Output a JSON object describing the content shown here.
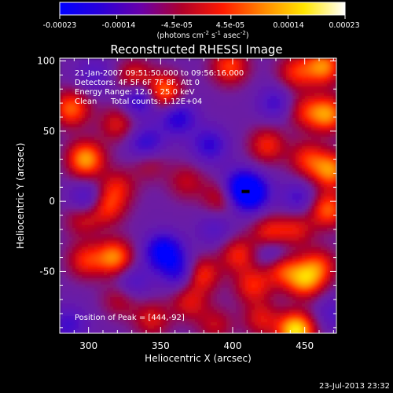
{
  "colors": {
    "background": "#000000",
    "axis": "#ffffff",
    "peak_marker": "#000000"
  },
  "colorbar": {
    "stops": [
      "#0000ff",
      "#2a00d8",
      "#6a00a8",
      "#b0002a",
      "#ff1a00",
      "#ff8800",
      "#ffe600",
      "#ffffff"
    ],
    "tick_labels": [
      "-0.00023",
      "-0.00014",
      "-4.5e-05",
      "4.5e-05",
      "0.00014",
      "0.00023"
    ],
    "unit_prefix": "(photons cm",
    "unit_exp1": "-2",
    "unit_mid": " s",
    "unit_exp2": "-1",
    "unit_mid2": " asec",
    "unit_exp3": "-2",
    "unit_suffix": ")"
  },
  "info": {
    "time_range": "21-Jan-2007 09:51:50.000 to 09:56:16.000",
    "detectors": "Detectors: 4F 5F 6F 7F 8F, Att 0",
    "energy": "Energy Range: 12.0 - 25.0 keV",
    "clean": "Clean",
    "total_counts": "Total counts: 1.12E+04",
    "peak": "Position of Peak = [444,-92]"
  },
  "footer": {
    "date": "23-Jul-2013 23:32"
  },
  "chart_data": {
    "type": "heatmap",
    "title": "Reconstructed RHESSI Image",
    "xlabel": "Heliocentric X (arcsec)",
    "ylabel": "Heliocentric Y (arcsec)",
    "xlim": [
      280,
      472
    ],
    "ylim": [
      -94,
      102
    ],
    "xticks": [
      300,
      350,
      400,
      450
    ],
    "yticks": [
      -50,
      0,
      50,
      100
    ],
    "colorbar_range": [
      -0.00023,
      0.00023
    ],
    "peak": [
      444,
      -92
    ],
    "blobs": [
      {
        "x": 288,
        "y": 66,
        "v": 0.8
      },
      {
        "x": 298,
        "y": 30,
        "v": 1.0
      },
      {
        "x": 332,
        "y": 88,
        "v": 0.6
      },
      {
        "x": 352,
        "y": 78,
        "v": 0.9
      },
      {
        "x": 320,
        "y": 55,
        "v": 0.5
      },
      {
        "x": 398,
        "y": 96,
        "v": 0.7
      },
      {
        "x": 444,
        "y": 92,
        "v": 0.6
      },
      {
        "x": 463,
        "y": 96,
        "v": 0.9
      },
      {
        "x": 450,
        "y": 64,
        "v": 0.5
      },
      {
        "x": 466,
        "y": 62,
        "v": 0.9
      },
      {
        "x": 424,
        "y": 40,
        "v": 0.6
      },
      {
        "x": 452,
        "y": 30,
        "v": 0.6
      },
      {
        "x": 468,
        "y": 22,
        "v": 0.9
      },
      {
        "x": 466,
        "y": -6,
        "v": 0.8
      },
      {
        "x": 392,
        "y": 3,
        "v": 0.5
      },
      {
        "x": 312,
        "y": -4,
        "v": 0.7
      },
      {
        "x": 296,
        "y": -12,
        "v": 0.5
      },
      {
        "x": 320,
        "y": 10,
        "v": 0.5
      },
      {
        "x": 342,
        "y": 28,
        "v": 0.4
      },
      {
        "x": 368,
        "y": 14,
        "v": 0.4
      },
      {
        "x": 318,
        "y": -40,
        "v": 0.9
      },
      {
        "x": 298,
        "y": -42,
        "v": 0.6
      },
      {
        "x": 426,
        "y": -24,
        "v": 0.7
      },
      {
        "x": 444,
        "y": -20,
        "v": 0.5
      },
      {
        "x": 434,
        "y": -48,
        "v": 0.7
      },
      {
        "x": 450,
        "y": -56,
        "v": 0.9
      },
      {
        "x": 460,
        "y": -46,
        "v": 0.6
      },
      {
        "x": 378,
        "y": -52,
        "v": 0.7
      },
      {
        "x": 370,
        "y": -72,
        "v": 0.5
      },
      {
        "x": 414,
        "y": -60,
        "v": 0.6
      },
      {
        "x": 344,
        "y": -84,
        "v": 0.5
      },
      {
        "x": 322,
        "y": -70,
        "v": 0.4
      },
      {
        "x": 388,
        "y": -88,
        "v": 0.4
      },
      {
        "x": 444,
        "y": -92,
        "v": 1.25
      },
      {
        "x": 420,
        "y": -84,
        "v": 0.5
      },
      {
        "x": 404,
        "y": -38,
        "v": 0.6
      },
      {
        "x": 336,
        "y": 74,
        "v": -0.7
      },
      {
        "x": 362,
        "y": 60,
        "v": -0.6
      },
      {
        "x": 412,
        "y": 6,
        "v": -1.0
      },
      {
        "x": 404,
        "y": 10,
        "v": -0.6
      },
      {
        "x": 352,
        "y": -36,
        "v": -0.9
      },
      {
        "x": 364,
        "y": -50,
        "v": -0.6
      },
      {
        "x": 340,
        "y": 40,
        "v": -0.6
      },
      {
        "x": 428,
        "y": -36,
        "v": -0.6
      },
      {
        "x": 300,
        "y": 0,
        "v": -0.6
      },
      {
        "x": 384,
        "y": 40,
        "v": -0.5
      },
      {
        "x": 446,
        "y": 2,
        "v": -0.4
      },
      {
        "x": 330,
        "y": -58,
        "v": -0.4
      },
      {
        "x": 388,
        "y": -20,
        "v": -0.3
      },
      {
        "x": 430,
        "y": 70,
        "v": -0.4
      },
      {
        "x": 304,
        "y": 90,
        "v": -0.3
      },
      {
        "x": 470,
        "y": -80,
        "v": -0.3
      },
      {
        "x": 286,
        "y": -88,
        "v": -0.4
      }
    ]
  }
}
